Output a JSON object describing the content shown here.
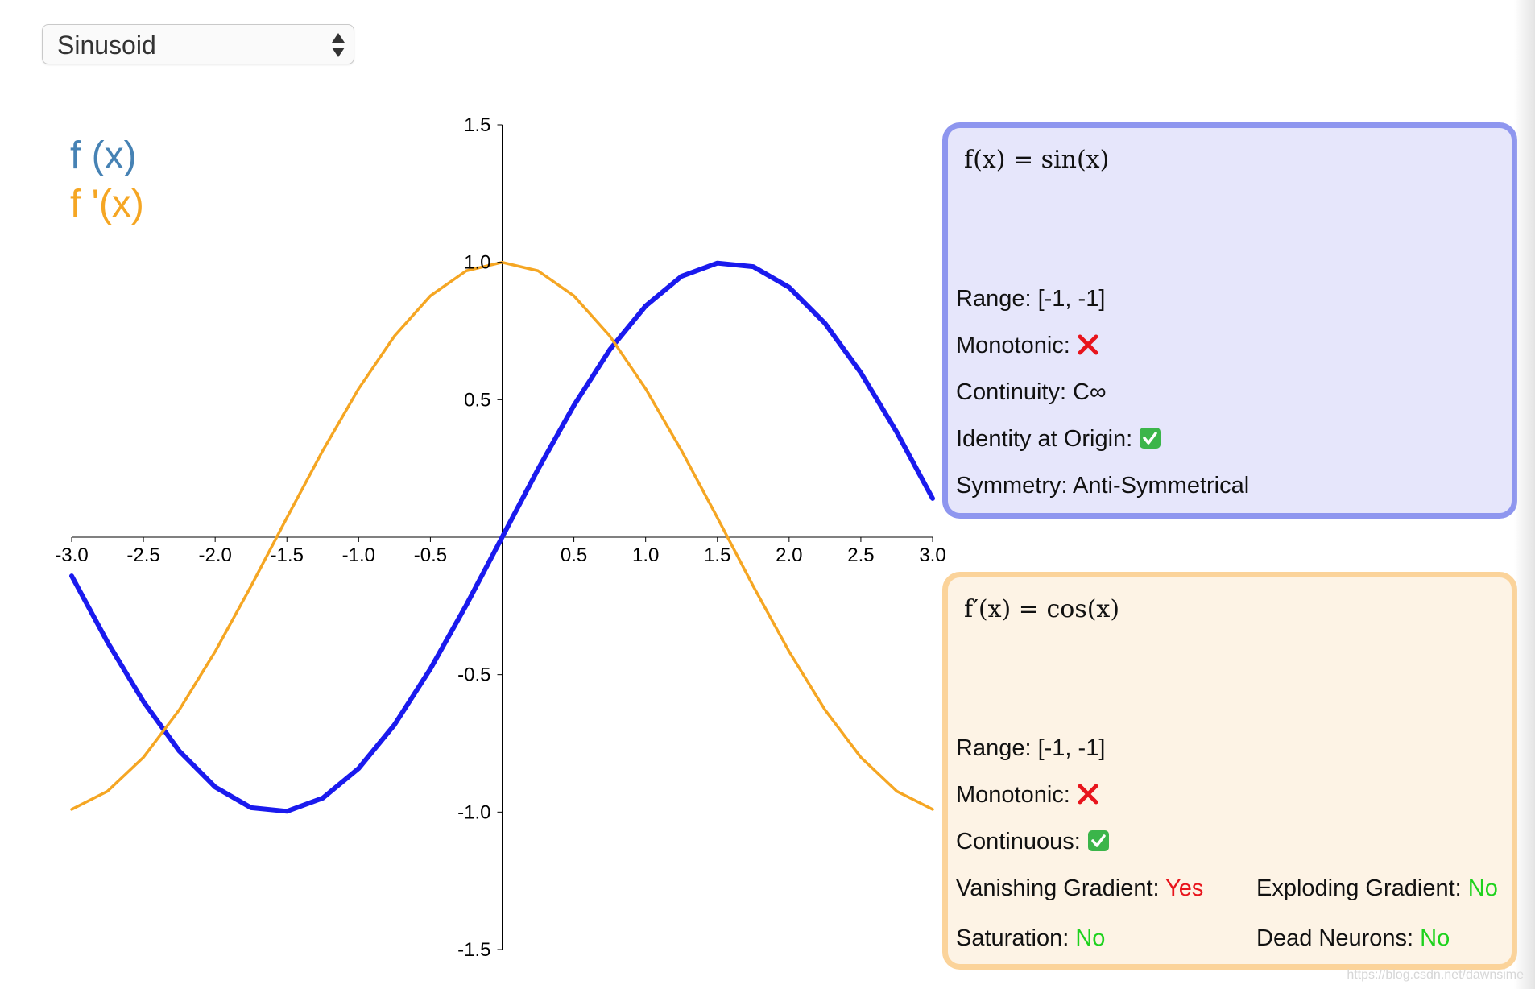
{
  "select": {
    "value": "Sinusoid"
  },
  "legend": {
    "f_label": "f (x)",
    "fp_label": "f '(x)",
    "f_color": "#4682b4",
    "fp_color": "#f5a623"
  },
  "chart_data": {
    "type": "line",
    "xlim": [
      -3.0,
      3.0
    ],
    "ylim": [
      -1.5,
      1.5
    ],
    "x_ticks": [
      "-3.0",
      "-2.5",
      "-2.0",
      "-1.5",
      "-1.0",
      "-0.5",
      "0.5",
      "1.0",
      "1.5",
      "2.0",
      "2.5",
      "3.0"
    ],
    "y_ticks": [
      "1.5",
      "1.0",
      "0.5",
      "-0.5",
      "-1.0",
      "-1.5"
    ],
    "x_tick_values": [
      -3.0,
      -2.5,
      -2.0,
      -1.5,
      -1.0,
      -0.5,
      0.5,
      1.0,
      1.5,
      2.0,
      2.5,
      3.0
    ],
    "y_tick_values": [
      1.5,
      1.0,
      0.5,
      -0.5,
      -1.0,
      -1.5
    ],
    "series": [
      {
        "name": "f (x)",
        "color": "#1a1aee",
        "x": [
          -3.0,
          -2.75,
          -2.5,
          -2.25,
          -2.0,
          -1.75,
          -1.5,
          -1.25,
          -1.0,
          -0.75,
          -0.5,
          -0.25,
          0.0,
          0.25,
          0.5,
          0.75,
          1.0,
          1.25,
          1.5,
          1.75,
          2.0,
          2.25,
          2.5,
          2.75,
          3.0
        ],
        "y": [
          -0.141,
          -0.382,
          -0.598,
          -0.778,
          -0.909,
          -0.984,
          -0.997,
          -0.949,
          -0.841,
          -0.682,
          -0.479,
          -0.247,
          0.0,
          0.247,
          0.479,
          0.682,
          0.841,
          0.949,
          0.997,
          0.984,
          0.909,
          0.778,
          0.598,
          0.382,
          0.141
        ]
      },
      {
        "name": "f '(x)",
        "color": "#f5a623",
        "x": [
          -3.0,
          -2.75,
          -2.5,
          -2.25,
          -2.0,
          -1.75,
          -1.5,
          -1.25,
          -1.0,
          -0.75,
          -0.5,
          -0.25,
          0.0,
          0.25,
          0.5,
          0.75,
          1.0,
          1.25,
          1.5,
          1.75,
          2.0,
          2.25,
          2.5,
          2.75,
          3.0
        ],
        "y": [
          -0.99,
          -0.924,
          -0.801,
          -0.628,
          -0.416,
          -0.178,
          0.071,
          0.315,
          0.54,
          0.732,
          0.878,
          0.969,
          1.0,
          0.969,
          0.878,
          0.732,
          0.54,
          0.315,
          0.071,
          -0.178,
          -0.416,
          -0.628,
          -0.801,
          -0.924,
          -0.99
        ]
      }
    ]
  },
  "panel_f": {
    "formula": "f(x) = sin(x)",
    "range_label": "Range:",
    "range_value": "[-1, -1]",
    "monotonic_label": "Monotonic:",
    "continuity_label": "Continuity:",
    "continuity_value": "C∞",
    "identity_label": "Identity at Origin:",
    "symmetry_label": "Symmetry:",
    "symmetry_value": "Anti-Symmetrical"
  },
  "panel_fp": {
    "formula": "f′(x) = cos(x)",
    "range_label": "Range:",
    "range_value": "[-1, -1]",
    "monotonic_label": "Monotonic:",
    "continuous_label": "Continuous:",
    "vanishing_label": "Vanishing Gradient:",
    "vanishing_value": "Yes",
    "exploding_label": "Exploding Gradient:",
    "exploding_value": "No",
    "saturation_label": "Saturation:",
    "saturation_value": "No",
    "dead_label": "Dead Neurons:",
    "dead_value": "No"
  },
  "watermark": "https://blog.csdn.net/dawnsime"
}
